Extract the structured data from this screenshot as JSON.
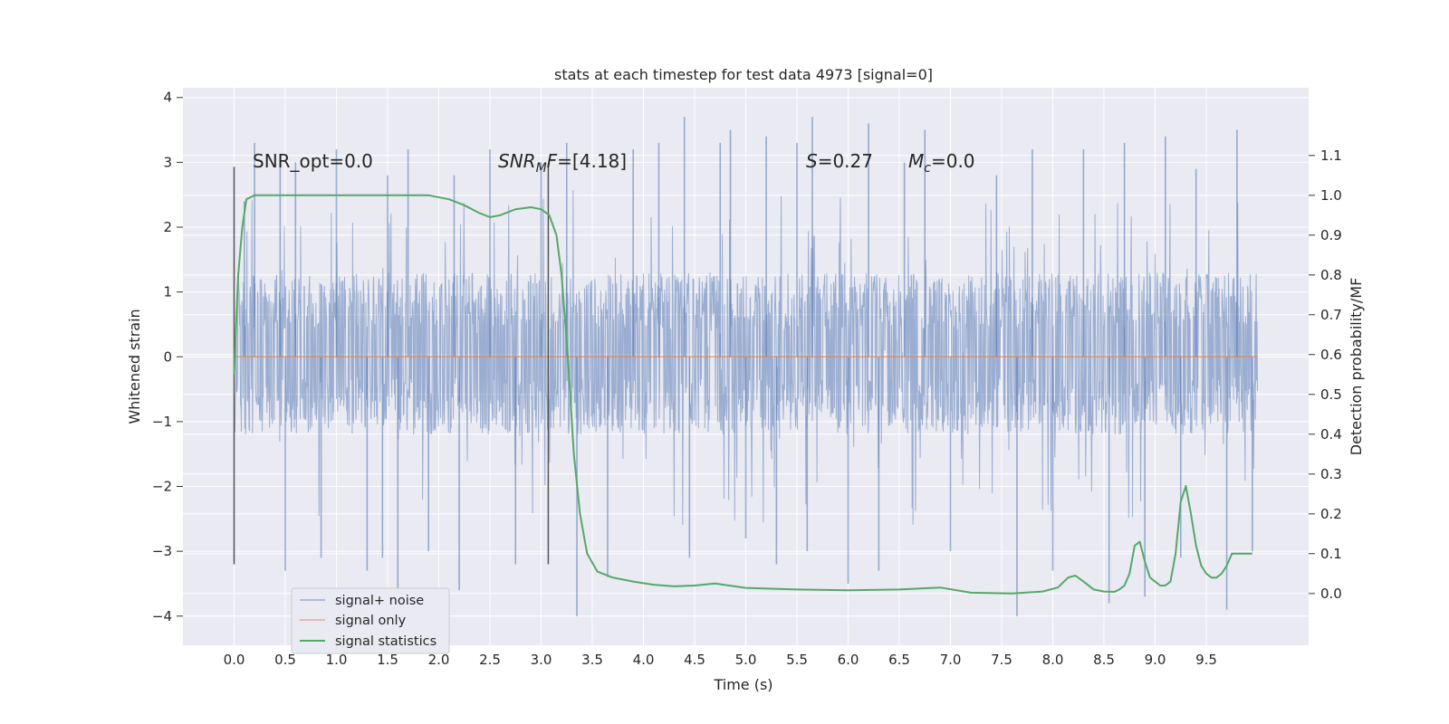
{
  "chart_data": {
    "type": "line",
    "title": "stats at each timestep for test data 4973 [signal=0]",
    "xlabel": "Time (s)",
    "ylabel": "Whitened strain",
    "y2label": "Detection probability/MF",
    "xlim": [
      -0.5,
      10.5
    ],
    "ylim": [
      -4.45,
      4.15
    ],
    "y2lim": [
      -0.13,
      1.27
    ],
    "x_ticks": [
      "0.0",
      "0.5",
      "1.0",
      "1.5",
      "2.0",
      "2.5",
      "3.0",
      "3.5",
      "4.0",
      "4.5",
      "5.0",
      "5.5",
      "6.0",
      "6.5",
      "7.0",
      "7.5",
      "8.0",
      "8.5",
      "9.0",
      "9.5"
    ],
    "y_ticks": [
      "4",
      "3",
      "2",
      "1",
      "0",
      "−1",
      "−2",
      "−3",
      "−4"
    ],
    "y2_ticks": [
      "1.1",
      "1.0",
      "0.9",
      "0.8",
      "0.7",
      "0.6",
      "0.5",
      "0.4",
      "0.3",
      "0.2",
      "0.1",
      "0.0"
    ],
    "grid": true,
    "legend_position": "lower-left",
    "annotations": {
      "snr_opt": "SNR_opt=0.0",
      "snr_mf_prefix": "SNR",
      "snr_mf_sub": "M",
      "snr_mf_suffix": "F=[4.18]",
      "s_prefix": "S",
      "s_suffix": "=0.27",
      "mc_prefix": "M",
      "mc_sub": "c",
      "mc_suffix": "=0.0"
    },
    "vertical_markers": [
      0.0,
      3.07
    ],
    "marker_range": [
      -3.2,
      2.93
    ],
    "colors": {
      "background": "#eaeaf2",
      "grid": "#ffffff",
      "noise": "#4c72b0",
      "signal": "#dd8452",
      "stats": "#55a868",
      "marker": "#555555"
    },
    "series": [
      {
        "name": "signal+ noise",
        "kind": "noise-trace",
        "x_range": [
          0.0,
          10.0
        ],
        "core_amplitude": [
          -1.2,
          1.3
        ],
        "spikes": [
          [
            0.1,
            2.4
          ],
          [
            0.2,
            3.3
          ],
          [
            0.45,
            3.0
          ],
          [
            0.5,
            -3.3
          ],
          [
            0.6,
            3.0
          ],
          [
            0.85,
            -3.1
          ],
          [
            1.0,
            3.2
          ],
          [
            1.3,
            -3.3
          ],
          [
            1.45,
            -3.1
          ],
          [
            1.5,
            2.8
          ],
          [
            1.6,
            -4.0
          ],
          [
            1.7,
            3.2
          ],
          [
            1.9,
            -3.0
          ],
          [
            2.15,
            2.8
          ],
          [
            2.2,
            -3.6
          ],
          [
            2.5,
            3.2
          ],
          [
            2.75,
            -3.2
          ],
          [
            3.0,
            3.0
          ],
          [
            3.25,
            3.3
          ],
          [
            3.35,
            -4.0
          ],
          [
            3.65,
            -3.4
          ],
          [
            3.9,
            3.2
          ],
          [
            4.15,
            3.3
          ],
          [
            4.4,
            3.7
          ],
          [
            4.45,
            -3.1
          ],
          [
            4.75,
            3.3
          ],
          [
            4.85,
            3.5
          ],
          [
            5.0,
            -2.8
          ],
          [
            5.2,
            3.4
          ],
          [
            5.3,
            -3.2
          ],
          [
            5.5,
            3.3
          ],
          [
            5.6,
            -3.0
          ],
          [
            5.65,
            3.7
          ],
          [
            6.0,
            -3.5
          ],
          [
            6.2,
            3.6
          ],
          [
            6.3,
            -3.3
          ],
          [
            6.55,
            3.0
          ],
          [
            6.75,
            3.5
          ],
          [
            7.0,
            -3.0
          ],
          [
            7.45,
            2.8
          ],
          [
            7.65,
            -4.0
          ],
          [
            7.8,
            3.2
          ],
          [
            8.0,
            -3.3
          ],
          [
            8.3,
            3.2
          ],
          [
            8.55,
            -3.8
          ],
          [
            8.7,
            3.3
          ],
          [
            8.9,
            -3.7
          ],
          [
            9.1,
            3.4
          ],
          [
            9.25,
            -3.1
          ],
          [
            9.4,
            2.9
          ],
          [
            9.7,
            -3.9
          ],
          [
            9.8,
            3.5
          ],
          [
            9.95,
            -3.0
          ]
        ]
      },
      {
        "name": "signal only",
        "kind": "flat",
        "x": [
          0.0,
          10.0
        ],
        "y": [
          0.0,
          0.0
        ]
      },
      {
        "name": "signal statistics",
        "axis": "right",
        "x": [
          0.0,
          0.04,
          0.08,
          0.12,
          0.2,
          0.35,
          0.6,
          1.0,
          1.5,
          1.9,
          2.1,
          2.25,
          2.4,
          2.5,
          2.6,
          2.75,
          2.9,
          3.0,
          3.08,
          3.15,
          3.2,
          3.26,
          3.32,
          3.38,
          3.45,
          3.55,
          3.7,
          3.9,
          4.1,
          4.3,
          4.5,
          4.7,
          5.0,
          5.5,
          6.0,
          6.5,
          6.9,
          7.2,
          7.6,
          7.9,
          8.05,
          8.15,
          8.22,
          8.3,
          8.4,
          8.5,
          8.6,
          8.65,
          8.7,
          8.75,
          8.8,
          8.85,
          8.9,
          8.95,
          9.0,
          9.05,
          9.1,
          9.15,
          9.2,
          9.25,
          9.3,
          9.35,
          9.4,
          9.45,
          9.5,
          9.55,
          9.6,
          9.65,
          9.7,
          9.75,
          9.8,
          9.85,
          9.9,
          9.95
        ],
        "y": [
          0.55,
          0.8,
          0.92,
          0.99,
          1.0,
          1.0,
          1.0,
          1.0,
          1.0,
          1.0,
          0.99,
          0.975,
          0.955,
          0.945,
          0.95,
          0.965,
          0.97,
          0.965,
          0.95,
          0.9,
          0.8,
          0.6,
          0.35,
          0.2,
          0.1,
          0.055,
          0.04,
          0.03,
          0.022,
          0.018,
          0.02,
          0.025,
          0.014,
          0.01,
          0.008,
          0.01,
          0.015,
          0.002,
          0.0,
          0.005,
          0.015,
          0.04,
          0.045,
          0.03,
          0.01,
          0.005,
          0.004,
          0.01,
          0.02,
          0.05,
          0.12,
          0.13,
          0.08,
          0.04,
          0.03,
          0.02,
          0.02,
          0.03,
          0.1,
          0.23,
          0.27,
          0.2,
          0.12,
          0.07,
          0.05,
          0.04,
          0.04,
          0.05,
          0.07,
          0.1,
          0.1,
          0.1,
          0.1,
          0.1
        ]
      }
    ]
  }
}
